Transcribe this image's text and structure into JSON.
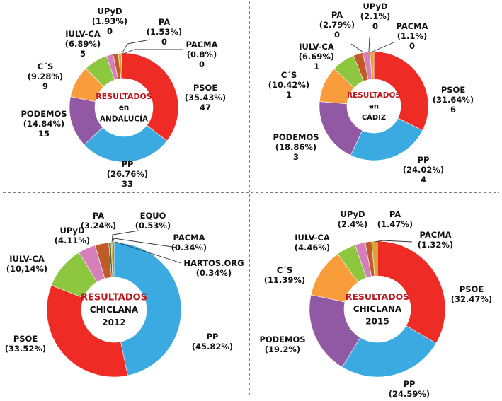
{
  "colors": {
    "PSOE": "#ee2b24",
    "PP": "#3aaae0",
    "PODEMOS": "#9158a3",
    "CS": "#f99d3c",
    "IULV-CA": "#8dc63f",
    "UPyD": "#d77fbb",
    "PA": "#c05b28",
    "PACMA": "#d9a53b",
    "EQUO": "#4a6b2f",
    "HARTOS.ORG": "#7a4a2a",
    "center_red": "#c0151b"
  },
  "chart_data": [
    {
      "type": "pie",
      "subtype": "donut",
      "center": {
        "line1": "RESULTADOS",
        "line2": "en",
        "line3": "ANDALUCÍA"
      },
      "slices": [
        {
          "name": "PSOE",
          "label": "PSOE",
          "pct": 35.43,
          "pct_text": "(35.43%)",
          "seats": "47"
        },
        {
          "name": "PP",
          "label": "PP",
          "pct": 26.76,
          "pct_text": "(26.76%)",
          "seats": "33"
        },
        {
          "name": "PODEMOS",
          "label": "PODEMOS",
          "pct": 14.84,
          "pct_text": "(14.84%)",
          "seats": "15"
        },
        {
          "name": "CS",
          "label": "C´S",
          "pct": 9.28,
          "pct_text": "(9.28%)",
          "seats": "9"
        },
        {
          "name": "IULV-CA",
          "label": "IULV-CA",
          "pct": 6.89,
          "pct_text": "(6.89%)",
          "seats": "5"
        },
        {
          "name": "UPyD",
          "label": "UPyD",
          "pct": 1.93,
          "pct_text": "(1.93%)",
          "seats": "0"
        },
        {
          "name": "PA",
          "label": "PA",
          "pct": 1.53,
          "pct_text": "(1.53%)",
          "seats": "0"
        },
        {
          "name": "PACMA",
          "label": "PACMA",
          "pct": 0.8,
          "pct_text": "(0.8%)",
          "seats": "0"
        }
      ]
    },
    {
      "type": "pie",
      "subtype": "donut",
      "center": {
        "line1": "RESULTADOS",
        "line2": "en",
        "line3": "CÁDIZ"
      },
      "slices": [
        {
          "name": "PSOE",
          "label": "PSOE",
          "pct": 31.64,
          "pct_text": "(31.64%)",
          "seats": "6"
        },
        {
          "name": "PP",
          "label": "PP",
          "pct": 24.02,
          "pct_text": "(24.02%)",
          "seats": "4"
        },
        {
          "name": "PODEMOS",
          "label": "PODEMOS",
          "pct": 18.86,
          "pct_text": "(18.86%)",
          "seats": "3"
        },
        {
          "name": "CS",
          "label": "C´S",
          "pct": 10.42,
          "pct_text": "(10.42%)",
          "seats": "1"
        },
        {
          "name": "IULV-CA",
          "label": "IULV-CA",
          "pct": 6.69,
          "pct_text": "(6.69%)",
          "seats": "1"
        },
        {
          "name": "PA",
          "label": "PA",
          "pct": 2.79,
          "pct_text": "(2.79%)",
          "seats": "0"
        },
        {
          "name": "UPyD",
          "label": "UPyD",
          "pct": 2.1,
          "pct_text": "(2.1%)",
          "seats": "0"
        },
        {
          "name": "PACMA",
          "label": "PACMA",
          "pct": 1.1,
          "pct_text": "(1.1%)",
          "seats": "0"
        }
      ]
    },
    {
      "type": "pie",
      "subtype": "donut",
      "center": {
        "line1": "RESULTADOS",
        "line2": "CHICLANA",
        "line3": "2012"
      },
      "slices": [
        {
          "name": "PP",
          "label": "PP",
          "pct": 45.82,
          "pct_text": "(45.82%)"
        },
        {
          "name": "PSOE",
          "label": "PSOE",
          "pct": 33.52,
          "pct_text": "(33.52%)"
        },
        {
          "name": "IULV-CA",
          "label": "IULV-CA",
          "pct": 10.14,
          "pct_text": "(10,14%)"
        },
        {
          "name": "UPyD",
          "label": "UPyD",
          "pct": 4.11,
          "pct_text": "(4.11%)"
        },
        {
          "name": "PA",
          "label": "PA",
          "pct": 3.24,
          "pct_text": "(3.24%)"
        },
        {
          "name": "EQUO",
          "label": "EQUO",
          "pct": 0.53,
          "pct_text": "(0.53%)"
        },
        {
          "name": "PACMA",
          "label": "PACMA",
          "pct": 0.34,
          "pct_text": "(0.34%)"
        },
        {
          "name": "HARTOS.ORG",
          "label": "HARTOS.ORG",
          "pct": 0.34,
          "pct_text": "(0.34%)"
        }
      ]
    },
    {
      "type": "pie",
      "subtype": "donut",
      "center": {
        "line1": "RESULTADOS",
        "line2": "CHICLANA",
        "line3": "2015"
      },
      "slices": [
        {
          "name": "PSOE",
          "label": "PSOE",
          "pct": 32.47,
          "pct_text": "(32.47%)"
        },
        {
          "name": "PP",
          "label": "PP",
          "pct": 24.59,
          "pct_text": "(24.59%)"
        },
        {
          "name": "PODEMOS",
          "label": "PODEMOS",
          "pct": 19.2,
          "pct_text": "(19.2%)"
        },
        {
          "name": "CS",
          "label": "C´S",
          "pct": 11.39,
          "pct_text": "(11.39%)"
        },
        {
          "name": "IULV-CA",
          "label": "IULV-CA",
          "pct": 4.46,
          "pct_text": "(4.46%)"
        },
        {
          "name": "UPyD",
          "label": "UPyD",
          "pct": 2.4,
          "pct_text": "(2.4%)"
        },
        {
          "name": "PA",
          "label": "PA",
          "pct": 1.47,
          "pct_text": "(1.47%)"
        },
        {
          "name": "PACMA",
          "label": "PACMA",
          "pct": 1.32,
          "pct_text": "(1.32%)"
        }
      ]
    }
  ]
}
